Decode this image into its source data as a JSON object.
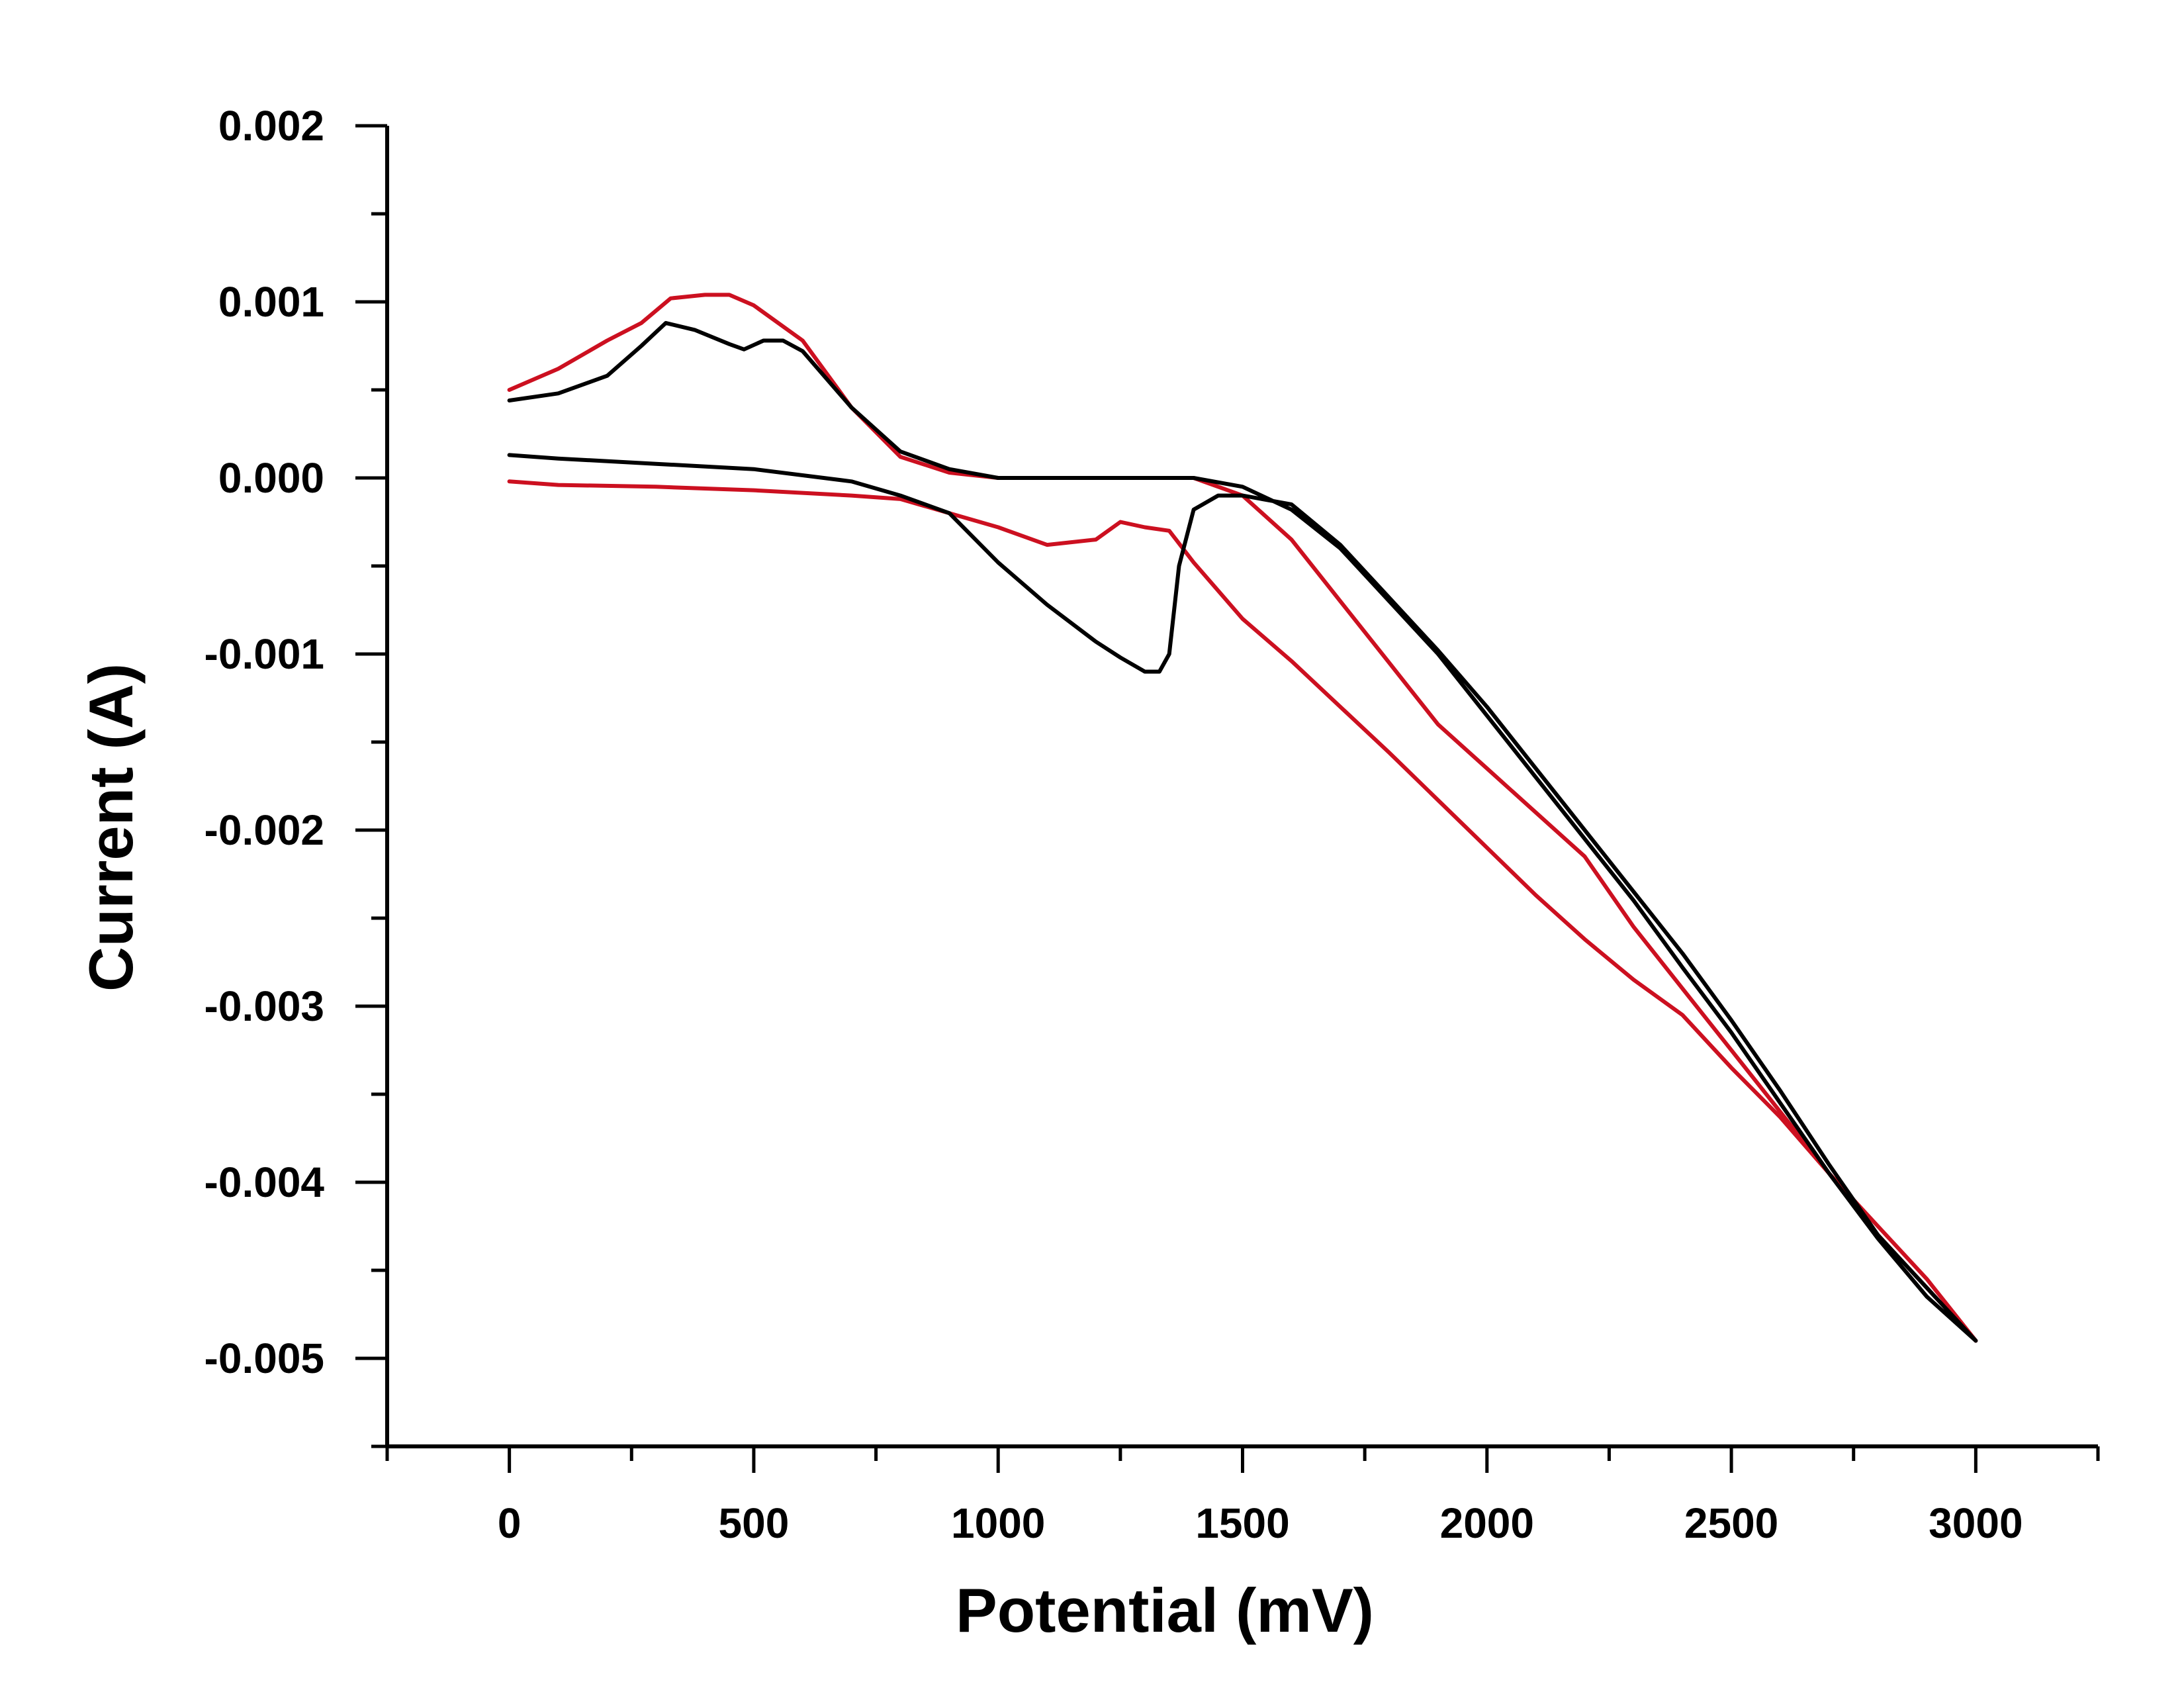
{
  "chart_data": {
    "type": "line",
    "title": "",
    "xlabel": "Potential (mV)",
    "ylabel": "Current (A)",
    "xlim": [
      -250,
      3250
    ],
    "ylim": [
      -0.0055,
      0.002
    ],
    "x_ticks": [
      0,
      500,
      1000,
      1500,
      2000,
      2500,
      3000
    ],
    "x_tick_labels": [
      "0",
      "500",
      "1000",
      "1500",
      "2000",
      "2500",
      "3000"
    ],
    "y_ticks": [
      0.002,
      0.001,
      0.0,
      -0.001,
      -0.002,
      -0.003,
      -0.004,
      -0.005
    ],
    "y_tick_labels": [
      "0.002",
      "0.001",
      "0.000",
      "-0.001",
      "-0.002",
      "-0.003",
      "-0.004",
      "-0.005"
    ],
    "grid": false,
    "legend": "none",
    "series": [
      {
        "color": "#cc1020",
        "points": [
          [
            0,
            0.0005
          ],
          [
            100,
            0.00062
          ],
          [
            200,
            0.00078
          ],
          [
            270,
            0.00088
          ],
          [
            330,
            0.00102
          ],
          [
            400,
            0.00104
          ],
          [
            450,
            0.00104
          ],
          [
            500,
            0.00098
          ],
          [
            600,
            0.00078
          ],
          [
            700,
            0.0004
          ],
          [
            800,
            0.00012
          ],
          [
            900,
            3e-05
          ],
          [
            1000,
            0.0
          ],
          [
            1200,
            0.0
          ],
          [
            1400,
            0.0
          ],
          [
            1500,
            -0.0001
          ],
          [
            1600,
            -0.00035
          ],
          [
            1700,
            -0.0007
          ],
          [
            1800,
            -0.00105
          ],
          [
            1900,
            -0.0014
          ],
          [
            2000,
            -0.00165
          ],
          [
            2100,
            -0.0019
          ],
          [
            2200,
            -0.00215
          ],
          [
            2300,
            -0.00255
          ],
          [
            2400,
            -0.0029
          ],
          [
            2500,
            -0.00325
          ],
          [
            2600,
            -0.0036
          ],
          [
            2700,
            -0.00395
          ],
          [
            2800,
            -0.0043
          ],
          [
            2900,
            -0.0046
          ],
          [
            3000,
            -0.0049
          ],
          [
            2900,
            -0.00455
          ],
          [
            2800,
            -0.00425
          ],
          [
            2700,
            -0.00395
          ],
          [
            2600,
            -0.00363
          ],
          [
            2500,
            -0.00335
          ],
          [
            2400,
            -0.00305
          ],
          [
            2300,
            -0.00285
          ],
          [
            2200,
            -0.00262
          ],
          [
            2100,
            -0.00237
          ],
          [
            2000,
            -0.0021
          ],
          [
            1900,
            -0.00183
          ],
          [
            1800,
            -0.00156
          ],
          [
            1700,
            -0.0013
          ],
          [
            1600,
            -0.00104
          ],
          [
            1500,
            -0.0008
          ],
          [
            1400,
            -0.00048
          ],
          [
            1350,
            -0.0003
          ],
          [
            1300,
            -0.00028
          ],
          [
            1250,
            -0.00025
          ],
          [
            1200,
            -0.00035
          ],
          [
            1100,
            -0.00038
          ],
          [
            1000,
            -0.00028
          ],
          [
            900,
            -0.0002
          ],
          [
            800,
            -0.00012
          ],
          [
            700,
            -0.0001
          ],
          [
            500,
            -7e-05
          ],
          [
            300,
            -5e-05
          ],
          [
            100,
            -4e-05
          ],
          [
            0,
            -2e-05
          ]
        ]
      },
      {
        "color": "#000000",
        "points": [
          [
            0,
            0.00044
          ],
          [
            100,
            0.00048
          ],
          [
            200,
            0.00058
          ],
          [
            270,
            0.00075
          ],
          [
            320,
            0.00088
          ],
          [
            380,
            0.00084
          ],
          [
            450,
            0.00076
          ],
          [
            480,
            0.00073
          ],
          [
            520,
            0.00078
          ],
          [
            560,
            0.00078
          ],
          [
            600,
            0.00072
          ],
          [
            700,
            0.0004
          ],
          [
            800,
            0.00015
          ],
          [
            900,
            5e-05
          ],
          [
            1000,
            0.0
          ],
          [
            1200,
            0.0
          ],
          [
            1400,
            0.0
          ],
          [
            1500,
            -5e-05
          ],
          [
            1600,
            -0.00018
          ],
          [
            1700,
            -0.0004
          ],
          [
            1800,
            -0.0007
          ],
          [
            1900,
            -0.001
          ],
          [
            2000,
            -0.00135
          ],
          [
            2100,
            -0.0017
          ],
          [
            2200,
            -0.00205
          ],
          [
            2300,
            -0.0024
          ],
          [
            2400,
            -0.00278
          ],
          [
            2500,
            -0.00315
          ],
          [
            2600,
            -0.00355
          ],
          [
            2700,
            -0.00395
          ],
          [
            2800,
            -0.00432
          ],
          [
            2900,
            -0.00465
          ],
          [
            3000,
            -0.0049
          ],
          [
            2900,
            -0.0046
          ],
          [
            2800,
            -0.0043
          ],
          [
            2700,
            -0.0039
          ],
          [
            2600,
            -0.00348
          ],
          [
            2500,
            -0.00308
          ],
          [
            2400,
            -0.0027
          ],
          [
            2300,
            -0.00235
          ],
          [
            2200,
            -0.002
          ],
          [
            2100,
            -0.00165
          ],
          [
            2000,
            -0.0013
          ],
          [
            1900,
            -0.00098
          ],
          [
            1800,
            -0.00068
          ],
          [
            1700,
            -0.00038
          ],
          [
            1600,
            -0.00015
          ],
          [
            1500,
            -0.0001
          ],
          [
            1450,
            -0.0001
          ],
          [
            1400,
            -0.00018
          ],
          [
            1370,
            -0.0005
          ],
          [
            1350,
            -0.001
          ],
          [
            1330,
            -0.0011
          ],
          [
            1300,
            -0.0011
          ],
          [
            1250,
            -0.00102
          ],
          [
            1200,
            -0.00093
          ],
          [
            1100,
            -0.00072
          ],
          [
            1000,
            -0.00048
          ],
          [
            900,
            -0.0002
          ],
          [
            800,
            -0.0001
          ],
          [
            700,
            -2e-05
          ],
          [
            500,
            5e-05
          ],
          [
            300,
            8e-05
          ],
          [
            100,
            0.00011
          ],
          [
            0,
            0.00013
          ]
        ]
      }
    ]
  }
}
